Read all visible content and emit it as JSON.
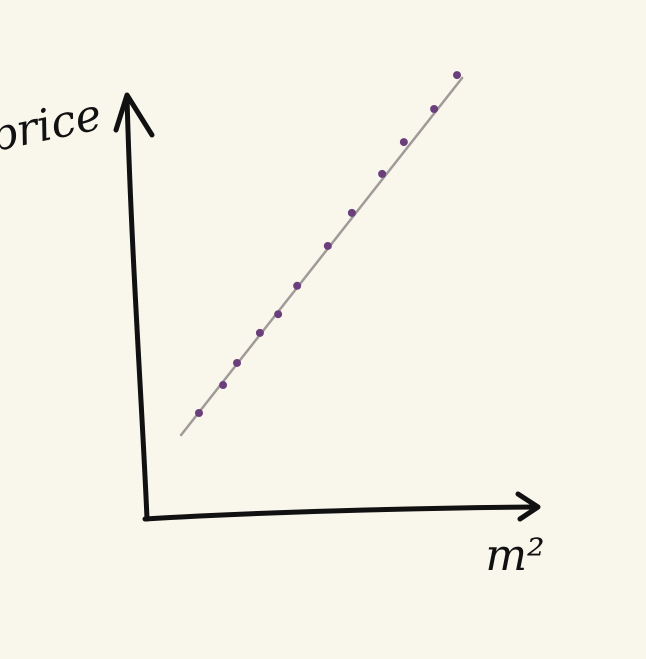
{
  "chart_data": {
    "type": "scatter",
    "xlabel": "m²",
    "ylabel": "price",
    "x": [
      13.4,
      19.6,
      23.2,
      29.1,
      33.8,
      38.7,
      46.6,
      52.8,
      60.6,
      66.2,
      74.0,
      79.9
    ],
    "values": [
      25.0,
      31.6,
      36.8,
      43.9,
      48.3,
      55.0,
      64.4,
      72.2,
      81.4,
      88.9,
      96.7,
      104.7
    ],
    "color": "#6b3f7c",
    "line": {
      "x": [
        8.8,
        81.2
      ],
      "values": [
        19.8,
        104.0
      ],
      "color": "#a09a98"
    },
    "xlim": [
      0,
      100
    ],
    "ylim": [
      0,
      110
    ]
  }
}
